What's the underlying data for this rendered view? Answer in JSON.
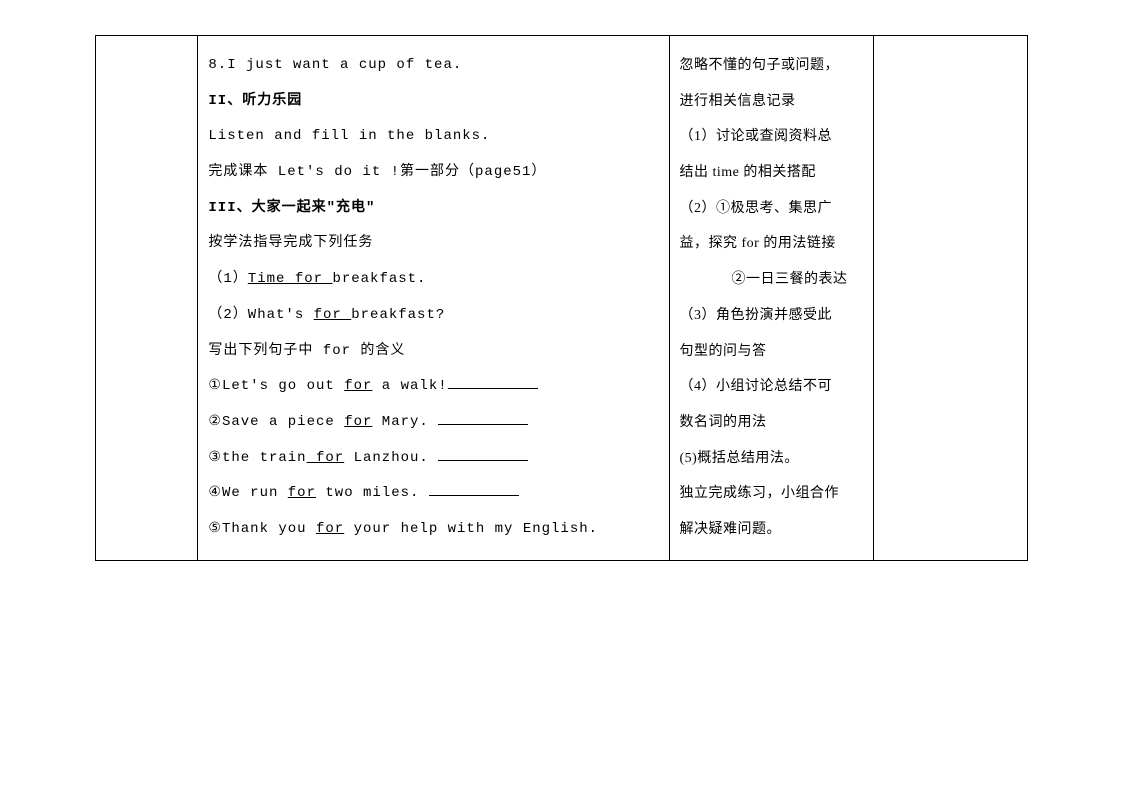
{
  "col2": {
    "l1_a": "8.I just want a cup of tea.",
    "l2_a": "II、听力乐园",
    "l3_a": "Listen and fill in the blanks.",
    "l4_a": "完成课本 Let's do it !第一部分（page51）",
    "l5_a": "III、大家一起来\"充电\"",
    "l6_a": "按学法指导完成下列任务",
    "l7_a": "（1）",
    "l7_b": "Time for ",
    "l7_c": "breakfast.",
    "l8_a": "（2）What's ",
    "l8_b": "for ",
    "l8_c": "breakfast?",
    "l9_a": "写出下列句子中 for 的含义",
    "l10_a": "①Let's go out ",
    "l10_b": "for",
    "l10_c": " a walk!",
    "l11_a": "②Save a piece ",
    "l11_b": "for",
    "l11_c": " Mary. ",
    "l12_a": "③the train",
    "l12_b": " for",
    "l12_c": " Lanzhou. ",
    "l13_a": "④We run ",
    "l13_b": "for",
    "l13_c": " two miles. ",
    "l14_a": "⑤Thank you ",
    "l14_b": "for",
    "l14_c": " your help with my English."
  },
  "col3": {
    "l1": "忽略不懂的句子或问题，",
    "l2": "进行相关信息记录",
    "l3": "（1）讨论或查阅资料总",
    "l4": "结出 time  的相关搭配",
    "l5": "（2）①极思考、集思广",
    "l6": "益，探究 for 的用法链接",
    "l7": "②一日三餐的表达",
    "l8": "（3）角色扮演并感受此",
    "l9": "句型的问与答",
    "l10": "（4）小组讨论总结不可",
    "l11": "数名词的用法",
    "l12": "(5)概括总结用法。",
    "l13": "独立完成练习，小组合作",
    "l14": "解决疑难问题。"
  }
}
